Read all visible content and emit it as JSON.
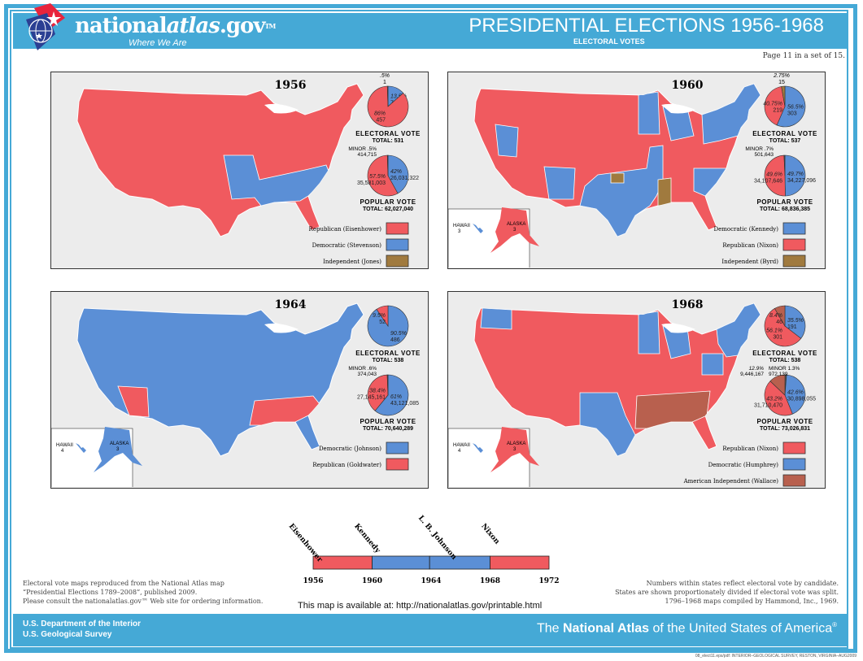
{
  "header": {
    "brand_pre": "national",
    "brand_italic": "atlas",
    "brand_post": ".gov",
    "tm": "TM",
    "tagline": "Where We Are",
    "title": "PRESIDENTIAL ELECTIONS 1956-1968",
    "subtitle": "ELECTORAL VOTES",
    "page_info": "Page 11 in a set of 15."
  },
  "colors": {
    "republican": "#f05a5f",
    "democratic": "#5b8fd6",
    "independent": "#a07a3e",
    "american_independent": "#b8604e",
    "panel_bg": "#ececec",
    "accent": "#45a9d6"
  },
  "panels": [
    {
      "year": "1956",
      "map_base": "republican",
      "electoral": {
        "title": "ELECTORAL VOTE",
        "total": "TOTAL: 531",
        "slices": [
          {
            "party": "democratic",
            "pct": 13.5,
            "label_pct": "13.5%",
            "label_val": "73"
          },
          {
            "party": "republican",
            "pct": 86,
            "label_pct": "86%",
            "label_val": "457"
          },
          {
            "party": "independent",
            "pct": 0.5,
            "label_pct": ".5%",
            "label_val": "1"
          }
        ]
      },
      "popular": {
        "title": "POPULAR VOTE",
        "total": "TOTAL: 62,027,040",
        "minor": "MINOR .5%",
        "minor_val": "414,715",
        "slices": [
          {
            "party": "democratic",
            "pct": 42,
            "label_pct": "42%",
            "label_val": "26,031,322"
          },
          {
            "party": "republican",
            "pct": 57.5,
            "label_pct": "57.5%",
            "label_val": "35,581,003"
          },
          {
            "party": "minor",
            "pct": 0.5
          }
        ]
      },
      "legend": [
        {
          "label": "Republican (Eisenhower)",
          "party": "republican"
        },
        {
          "label": "Democratic (Stevenson)",
          "party": "democratic"
        },
        {
          "label": "Independent (Jones)",
          "party": "independent"
        }
      ]
    },
    {
      "year": "1960",
      "map_base": "republican",
      "electoral": {
        "title": "ELECTORAL VOTE",
        "total": "TOTAL: 537",
        "slices": [
          {
            "party": "democratic",
            "pct": 56.5,
            "label_pct": "56.5%",
            "label_val": "303"
          },
          {
            "party": "republican",
            "pct": 40.75,
            "label_pct": "40.75%",
            "label_val": "219"
          },
          {
            "party": "independent",
            "pct": 2.75,
            "label_pct": "2.75%",
            "label_val": "15"
          }
        ]
      },
      "popular": {
        "title": "POPULAR VOTE",
        "total": "TOTAL: 68,836,385",
        "minor": "MINOR .7%",
        "minor_val": "501,643",
        "slices": [
          {
            "party": "democratic",
            "pct": 49.7,
            "label_pct": "49.7%",
            "label_val": "34,227,096"
          },
          {
            "party": "republican",
            "pct": 49.6,
            "label_pct": "49.6%",
            "label_val": "34,107,646"
          },
          {
            "party": "minor",
            "pct": 0.7
          }
        ]
      },
      "legend": [
        {
          "label": "Democratic (Kennedy)",
          "party": "democratic"
        },
        {
          "label": "Republican (Nixon)",
          "party": "republican"
        },
        {
          "label": "Independent (Byrd)",
          "party": "independent"
        }
      ],
      "insets": {
        "hawaii": "HAWAII",
        "hawaii_ev": "3",
        "alaska": "ALASKA",
        "alaska_ev": "3"
      }
    },
    {
      "year": "1964",
      "map_base": "democratic",
      "electoral": {
        "title": "ELECTORAL VOTE",
        "total": "TOTAL: 538",
        "slices": [
          {
            "party": "democratic",
            "pct": 90.5,
            "label_pct": "90.5%",
            "label_val": "486"
          },
          {
            "party": "republican",
            "pct": 9.5,
            "label_pct": "9.5%",
            "label_val": "52"
          }
        ]
      },
      "popular": {
        "title": "POPULAR VOTE",
        "total": "TOTAL: 70,640,289",
        "minor": "MINOR .6%",
        "minor_val": "374,043",
        "slices": [
          {
            "party": "democratic",
            "pct": 61,
            "label_pct": "61%",
            "label_val": "43,121,085"
          },
          {
            "party": "republican",
            "pct": 38.4,
            "label_pct": "38.4%",
            "label_val": "27,145,161"
          },
          {
            "party": "minor",
            "pct": 0.6
          }
        ]
      },
      "legend": [
        {
          "label": "Democratic (Johnson)",
          "party": "democratic"
        },
        {
          "label": "Republican (Goldwater)",
          "party": "republican"
        }
      ],
      "insets": {
        "hawaii": "HAWAII",
        "hawaii_ev": "4",
        "alaska": "ALASKA",
        "alaska_ev": "3"
      }
    },
    {
      "year": "1968",
      "map_base": "republican",
      "electoral": {
        "title": "ELECTORAL VOTE",
        "total": "TOTAL: 538",
        "slices": [
          {
            "party": "democratic",
            "pct": 35.5,
            "label_pct": "35.5%",
            "label_val": "191"
          },
          {
            "party": "republican",
            "pct": 56.1,
            "label_pct": "56.1%",
            "label_val": "301"
          },
          {
            "party": "american_independent",
            "pct": 8.4,
            "label_pct": "8.4%",
            "label_val": "46"
          }
        ]
      },
      "popular": {
        "title": "POPULAR VOTE",
        "total": "TOTAL: 73,026,831",
        "minor": "MINOR 1.3%",
        "minor_val": "972,139",
        "extra": "12.9%",
        "extra_val": "9,446,167",
        "slices": [
          {
            "party": "minor",
            "pct": 1.3
          },
          {
            "party": "democratic",
            "pct": 42.6,
            "label_pct": "42.6%",
            "label_val": "30,898,055"
          },
          {
            "party": "republican",
            "pct": 43.2,
            "label_pct": "43.2%",
            "label_val": "31,710,470"
          },
          {
            "party": "american_independent",
            "pct": 12.9
          }
        ]
      },
      "legend": [
        {
          "label": "Republican (Nixon)",
          "party": "republican"
        },
        {
          "label": "Democratic (Humphrey)",
          "party": "democratic"
        },
        {
          "label": "American Independent (Wallace)",
          "party": "american_independent"
        }
      ],
      "insets": {
        "hawaii": "HAWAII",
        "hawaii_ev": "4",
        "alaska": "ALASKA",
        "alaska_ev": "3"
      }
    }
  ],
  "timeline": {
    "start": 1956,
    "end": 1972,
    "ticks": [
      "1956",
      "1960",
      "1964",
      "1968",
      "1972"
    ],
    "terms": [
      {
        "name": "Eisenhower",
        "from": 1956,
        "to": 1960,
        "party": "republican"
      },
      {
        "name": "Kennedy",
        "from": 1960,
        "to": 1963.9,
        "party": "democratic"
      },
      {
        "name": "L. B. Johnson",
        "from": 1963.9,
        "to": 1968,
        "party": "democratic"
      },
      {
        "name": "Nixon",
        "from": 1968,
        "to": 1972,
        "party": "republican"
      }
    ]
  },
  "notes": {
    "left": [
      "Electoral vote maps reproduced from the National Atlas map",
      "“Presidential Elections 1789–2008”, published 2009.",
      "Please consult the nationalatlas.gov™ Web site for ordering information."
    ],
    "right": [
      "Numbers within states reflect electoral vote by candidate.",
      "States are shown proportionately divided if electoral vote was split.",
      "1796–1968 maps compiled by Hammond, Inc., 1969."
    ],
    "available": "This map is available at:  http://nationalatlas.gov/printable.html"
  },
  "footer": {
    "dept1": "U.S. Department of the Interior",
    "dept2": "U.S. Geological Survey",
    "natl_pre": "The ",
    "natl_bold": "National Atlas",
    "natl_post": " of the United States of America",
    "reg": "®",
    "credit": "08_elect11.eps/pdf: INTERIOR–GEOLOGICAL SURVEY, RESTON, VIRGINIA–AUG2009"
  }
}
